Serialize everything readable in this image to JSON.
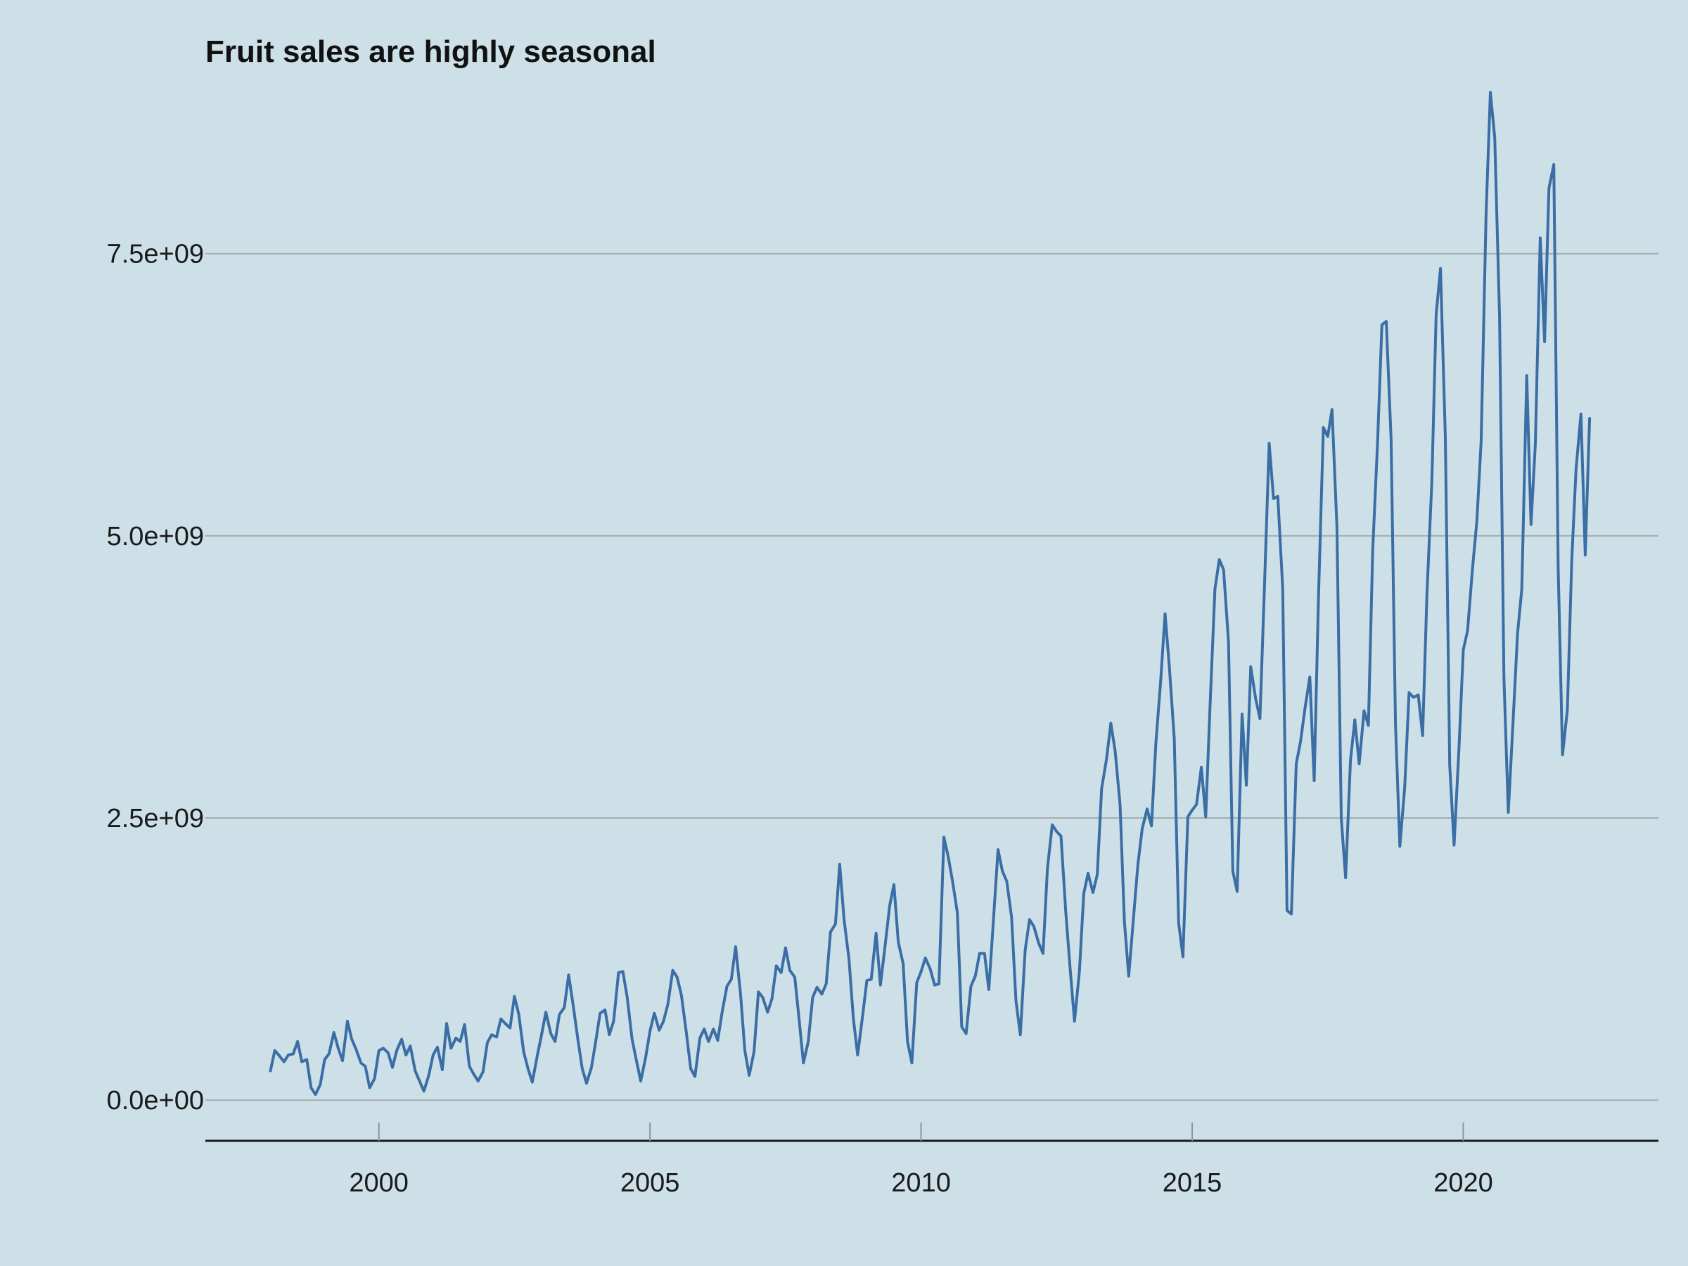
{
  "chart_data": {
    "type": "line",
    "title": "Fruit sales are highly seasonal",
    "xlabel": "",
    "ylabel": "",
    "x_ticks": [
      2000,
      2005,
      2010,
      2015,
      2020
    ],
    "x_tick_labels": [
      "2000",
      "2005",
      "2010",
      "2015",
      "2020"
    ],
    "y_ticks": [
      0,
      2500000000,
      5000000000,
      7500000000
    ],
    "y_tick_labels": [
      "0.0e+00",
      "2.5e+09",
      "5.0e+09",
      "7.5e+09"
    ],
    "xlim": [
      1996.8,
      2023.6
    ],
    "ylim": [
      -360000000,
      9000000000
    ],
    "grid": "horizontal",
    "line_color": "#3a6ea5",
    "background_color": "#cde0e8",
    "series": [
      {
        "x": [
          1998.0,
          1998.08,
          1998.17,
          1998.25,
          1998.33,
          1998.42,
          1998.5,
          1998.58,
          1998.67,
          1998.75,
          1998.83,
          1998.92,
          1999.0,
          1999.08,
          1999.17,
          1999.25,
          1999.33,
          1999.42,
          1999.5,
          1999.58,
          1999.67,
          1999.75,
          1999.83,
          1999.92,
          2000.0,
          2000.08,
          2000.17,
          2000.25,
          2000.33,
          2000.42,
          2000.5,
          2000.58,
          2000.67,
          2000.75,
          2000.83,
          2000.92,
          2001.0,
          2001.08,
          2001.17,
          2001.25,
          2001.33,
          2001.42,
          2001.5,
          2001.58,
          2001.67,
          2001.75,
          2001.83,
          2001.92,
          2002.0,
          2002.08,
          2002.17,
          2002.25,
          2002.33,
          2002.42,
          2002.5,
          2002.58,
          2002.67,
          2002.75,
          2002.83,
          2002.92,
          2003.0,
          2003.08,
          2003.17,
          2003.25,
          2003.33,
          2003.42,
          2003.5,
          2003.58,
          2003.67,
          2003.75,
          2003.83,
          2003.92,
          2004.0,
          2004.08,
          2004.17,
          2004.25,
          2004.33,
          2004.42,
          2004.5,
          2004.58,
          2004.67,
          2004.75,
          2004.83,
          2004.92,
          2005.0,
          2005.08,
          2005.17,
          2005.25,
          2005.33,
          2005.42,
          2005.5,
          2005.58,
          2005.67,
          2005.75,
          2005.83,
          2005.92,
          2006.0,
          2006.08,
          2006.17,
          2006.25,
          2006.33,
          2006.42,
          2006.5,
          2006.58,
          2006.67,
          2006.75,
          2006.83,
          2006.92,
          2007.0,
          2007.08,
          2007.17,
          2007.25,
          2007.33,
          2007.42,
          2007.5,
          2007.58,
          2007.67,
          2007.75,
          2007.83,
          2007.92,
          2008.0,
          2008.08,
          2008.17,
          2008.25,
          2008.33,
          2008.42,
          2008.5,
          2008.58,
          2008.67,
          2008.75,
          2008.83,
          2008.92,
          2009.0,
          2009.08,
          2009.17,
          2009.25,
          2009.33,
          2009.42,
          2009.5,
          2009.58,
          2009.67,
          2009.75,
          2009.83,
          2009.92,
          2010.0,
          2010.08,
          2010.17,
          2010.25,
          2010.33,
          2010.42,
          2010.5,
          2010.58,
          2010.67,
          2010.75,
          2010.83,
          2010.92,
          2011.0,
          2011.08,
          2011.17,
          2011.25,
          2011.33,
          2011.42,
          2011.5,
          2011.58,
          2011.67,
          2011.75,
          2011.83,
          2011.92,
          2012.0,
          2012.08,
          2012.17,
          2012.25,
          2012.33,
          2012.42,
          2012.5,
          2012.58,
          2012.67,
          2012.75,
          2012.83,
          2012.92,
          2013.0,
          2013.08,
          2013.17,
          2013.25,
          2013.33,
          2013.42,
          2013.5,
          2013.58,
          2013.67,
          2013.75,
          2013.83,
          2013.92,
          2014.0,
          2014.08,
          2014.17,
          2014.25,
          2014.33,
          2014.42,
          2014.5,
          2014.58,
          2014.67,
          2014.75,
          2014.83,
          2014.92,
          2015.0,
          2015.08,
          2015.17,
          2015.25,
          2015.33,
          2015.42,
          2015.5,
          2015.58,
          2015.67,
          2015.75,
          2015.83,
          2015.92,
          2016.0,
          2016.08,
          2016.17,
          2016.25,
          2016.33,
          2016.42,
          2016.5,
          2016.58,
          2016.67,
          2016.75,
          2016.83,
          2016.92,
          2017.0,
          2017.08,
          2017.17,
          2017.25,
          2017.33,
          2017.42,
          2017.5,
          2017.58,
          2017.67,
          2017.75,
          2017.83,
          2017.92,
          2018.0,
          2018.08,
          2018.17,
          2018.25,
          2018.33,
          2018.42,
          2018.5,
          2018.58,
          2018.67,
          2018.75,
          2018.83,
          2018.92,
          2019.0,
          2019.08,
          2019.17,
          2019.25,
          2019.33,
          2019.42,
          2019.5,
          2019.58,
          2019.67,
          2019.75,
          2019.83,
          2019.92,
          2020.0,
          2020.08,
          2020.17,
          2020.25,
          2020.33,
          2020.42,
          2020.5,
          2020.58,
          2020.67,
          2020.75,
          2020.83,
          2020.92,
          2021.0,
          2021.08,
          2021.17,
          2021.25,
          2021.33,
          2021.42,
          2021.5,
          2021.58,
          2021.67,
          2021.75,
          2021.83,
          2021.92,
          2022.0,
          2022.08,
          2022.17,
          2022.25,
          2022.33
        ],
        "y": [
          260000000,
          440000000,
          390000000,
          340000000,
          400000000,
          410000000,
          520000000,
          340000000,
          360000000,
          110000000,
          50000000,
          140000000,
          360000000,
          410000000,
          600000000,
          460000000,
          350000000,
          700000000,
          540000000,
          450000000,
          330000000,
          300000000,
          110000000,
          190000000,
          440000000,
          460000000,
          420000000,
          290000000,
          440000000,
          540000000,
          400000000,
          480000000,
          260000000,
          170000000,
          80000000,
          220000000,
          400000000,
          470000000,
          270000000,
          680000000,
          460000000,
          550000000,
          520000000,
          670000000,
          300000000,
          230000000,
          170000000,
          250000000,
          510000000,
          580000000,
          560000000,
          720000000,
          680000000,
          640000000,
          920000000,
          760000000,
          430000000,
          280000000,
          160000000,
          390000000,
          580000000,
          780000000,
          590000000,
          520000000,
          760000000,
          820000000,
          1110000000,
          850000000,
          540000000,
          280000000,
          150000000,
          290000000,
          520000000,
          770000000,
          800000000,
          580000000,
          700000000,
          1130000000,
          1140000000,
          910000000,
          540000000,
          350000000,
          170000000,
          380000000,
          610000000,
          770000000,
          620000000,
          700000000,
          850000000,
          1150000000,
          1090000000,
          930000000,
          600000000,
          280000000,
          210000000,
          550000000,
          630000000,
          520000000,
          630000000,
          530000000,
          780000000,
          1010000000,
          1070000000,
          1360000000,
          940000000,
          440000000,
          220000000,
          430000000,
          960000000,
          910000000,
          780000000,
          900000000,
          1190000000,
          1130000000,
          1350000000,
          1150000000,
          1090000000,
          720000000,
          330000000,
          520000000,
          910000000,
          1000000000,
          940000000,
          1030000000,
          1490000000,
          1560000000,
          2090000000,
          1600000000,
          1250000000,
          730000000,
          400000000,
          740000000,
          1060000000,
          1070000000,
          1480000000,
          1020000000,
          1340000000,
          1720000000,
          1910000000,
          1400000000,
          1210000000,
          520000000,
          330000000,
          1040000000,
          1140000000,
          1260000000,
          1160000000,
          1020000000,
          1030000000,
          2330000000,
          2160000000,
          1940000000,
          1660000000,
          650000000,
          590000000,
          1010000000,
          1100000000,
          1300000000,
          1300000000,
          980000000,
          1560000000,
          2220000000,
          2030000000,
          1940000000,
          1620000000,
          880000000,
          580000000,
          1330000000,
          1600000000,
          1540000000,
          1390000000,
          1300000000,
          2050000000,
          2440000000,
          2380000000,
          2340000000,
          1660000000,
          1160000000,
          700000000,
          1140000000,
          1830000000,
          2010000000,
          1840000000,
          2000000000,
          2760000000,
          3020000000,
          3340000000,
          3090000000,
          2620000000,
          1580000000,
          1100000000,
          1630000000,
          2090000000,
          2410000000,
          2580000000,
          2430000000,
          3160000000,
          3720000000,
          4310000000,
          3830000000,
          3200000000,
          1570000000,
          1270000000,
          2510000000,
          2570000000,
          2620000000,
          2950000000,
          2510000000,
          3500000000,
          4530000000,
          4790000000,
          4700000000,
          4060000000,
          2030000000,
          1850000000,
          3420000000,
          2790000000,
          3840000000,
          3560000000,
          3380000000,
          4510000000,
          5820000000,
          5330000000,
          5350000000,
          4530000000,
          1680000000,
          1650000000,
          2980000000,
          3180000000,
          3470000000,
          3750000000,
          2830000000,
          4450000000,
          5960000000,
          5880000000,
          6120000000,
          5070000000,
          2500000000,
          1970000000,
          3010000000,
          3370000000,
          2980000000,
          3450000000,
          3320000000,
          4870000000,
          5840000000,
          6870000000,
          6900000000,
          5850000000,
          3330000000,
          2250000000,
          2770000000,
          3610000000,
          3570000000,
          3590000000,
          3230000000,
          4480000000,
          5480000000,
          6960000000,
          7370000000,
          5870000000,
          2970000000,
          2260000000,
          3110000000,
          3990000000,
          4160000000,
          4710000000,
          5130000000,
          5840000000,
          7850000000,
          8930000000,
          8530000000,
          6940000000,
          3740000000,
          2550000000,
          3370000000,
          4130000000,
          4530000000,
          6420000000,
          5100000000,
          5820000000,
          7640000000,
          6720000000,
          8080000000,
          8290000000,
          4720000000,
          3060000000,
          3460000000,
          4780000000,
          5590000000,
          6080000000,
          4830000000,
          6040000000
        ]
      }
    ]
  }
}
